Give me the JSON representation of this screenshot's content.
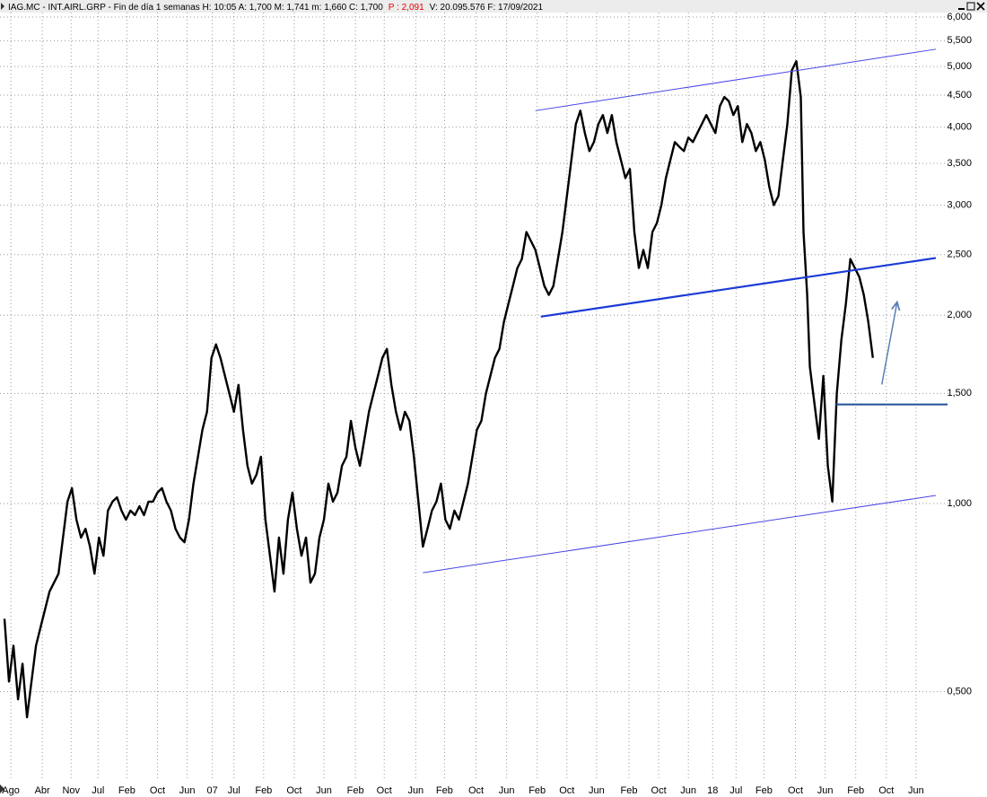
{
  "chart_data": {
    "type": "line",
    "info": [
      {
        "text": "IAG.MC - INT.AIRL.GRP - Fin de día 1 semanas  H: 10:05  A: 1,700  M: 1,741  m: 1,660  C: 1,700",
        "color": "#000000"
      },
      {
        "text": "P : 2,091",
        "color": "#e00000"
      },
      {
        "text": "V: 20.095.576  F: 17/09/2021",
        "color": "#000000"
      }
    ],
    "log_y": true,
    "grid": true,
    "xlim": [
      0,
      1055
    ],
    "ylim": [
      0.36,
      6.1
    ],
    "yticks": [
      {
        "value": 6,
        "label": "6,000"
      },
      {
        "value": 5.5,
        "label": "5,500"
      },
      {
        "value": 5,
        "label": "5,000"
      },
      {
        "value": 4.5,
        "label": "4,500"
      },
      {
        "value": 4,
        "label": "4,000"
      },
      {
        "value": 3.5,
        "label": "3,500"
      },
      {
        "value": 3,
        "label": "3,000"
      },
      {
        "value": 2.5,
        "label": "2,500"
      },
      {
        "value": 2,
        "label": "2,000"
      },
      {
        "value": 1.5,
        "label": "1,500"
      },
      {
        "value": 1,
        "label": "1,000"
      },
      {
        "value": 0.5,
        "label": "0,500"
      }
    ],
    "xticks": [
      {
        "value": 12,
        "label": "Ago"
      },
      {
        "value": 47,
        "label": "Abr"
      },
      {
        "value": 79,
        "label": "Nov"
      },
      {
        "value": 109,
        "label": "Jul"
      },
      {
        "value": 141,
        "label": "Feb"
      },
      {
        "value": 175,
        "label": "Oct"
      },
      {
        "value": 208,
        "label": "Jun"
      },
      {
        "value": 236,
        "label": "07"
      },
      {
        "value": 260,
        "label": "Jul"
      },
      {
        "value": 293,
        "label": "Feb"
      },
      {
        "value": 327,
        "label": "Oct"
      },
      {
        "value": 360,
        "label": "Jun"
      },
      {
        "value": 395,
        "label": "Feb"
      },
      {
        "value": 427,
        "label": "Oct"
      },
      {
        "value": 462,
        "label": "Jun"
      },
      {
        "value": 494,
        "label": "Feb"
      },
      {
        "value": 529,
        "label": "Oct"
      },
      {
        "value": 563,
        "label": "Jun"
      },
      {
        "value": 597,
        "label": "Feb"
      },
      {
        "value": 630,
        "label": "Oct"
      },
      {
        "value": 663,
        "label": "Jun"
      },
      {
        "value": 699,
        "label": "Feb"
      },
      {
        "value": 732,
        "label": "Oct"
      },
      {
        "value": 765,
        "label": "Jun"
      },
      {
        "value": 792,
        "label": "18"
      },
      {
        "value": 818,
        "label": "Jul"
      },
      {
        "value": 849,
        "label": "Feb"
      },
      {
        "value": 884,
        "label": "Oct"
      },
      {
        "value": 917,
        "label": "Jun"
      },
      {
        "value": 951,
        "label": "Feb"
      },
      {
        "value": 985,
        "label": "Oct"
      },
      {
        "value": 1018,
        "label": "Jun"
      }
    ],
    "x": [
      5,
      10,
      15,
      20,
      25,
      30,
      35,
      40,
      45,
      50,
      55,
      60,
      65,
      70,
      75,
      80,
      85,
      90,
      95,
      100,
      105,
      110,
      115,
      120,
      125,
      130,
      135,
      140,
      145,
      150,
      155,
      160,
      165,
      170,
      175,
      180,
      185,
      190,
      195,
      200,
      205,
      210,
      215,
      220,
      225,
      230,
      235,
      240,
      245,
      250,
      255,
      260,
      265,
      270,
      275,
      280,
      285,
      290,
      295,
      300,
      305,
      310,
      315,
      320,
      325,
      330,
      335,
      340,
      345,
      350,
      355,
      360,
      365,
      370,
      375,
      380,
      385,
      390,
      395,
      400,
      405,
      410,
      415,
      420,
      425,
      430,
      435,
      440,
      445,
      450,
      455,
      460,
      465,
      470,
      475,
      480,
      485,
      490,
      495,
      500,
      505,
      510,
      515,
      520,
      525,
      530,
      535,
      540,
      545,
      550,
      555,
      560,
      565,
      570,
      575,
      580,
      585,
      590,
      595,
      600,
      605,
      610,
      615,
      620,
      625,
      630,
      635,
      640,
      645,
      650,
      655,
      660,
      665,
      670,
      675,
      680,
      685,
      690,
      695,
      700,
      705,
      710,
      715,
      720,
      725,
      730,
      735,
      740,
      745,
      750,
      755,
      760,
      765,
      770,
      775,
      780,
      785,
      790,
      795,
      800,
      805,
      810,
      815,
      820,
      825,
      830,
      835,
      840,
      845,
      850,
      855,
      860,
      865,
      870,
      875,
      880,
      885,
      890,
      893,
      897,
      900,
      905,
      910,
      915,
      920,
      925,
      930,
      935,
      940,
      945,
      950,
      955,
      960,
      965,
      970
    ],
    "series": [
      {
        "color": "#000000",
        "values": [
          0.654,
          0.519,
          0.592,
          0.486,
          0.554,
          0.455,
          0.519,
          0.592,
          0.633,
          0.676,
          0.723,
          0.747,
          0.772,
          0.882,
          1.007,
          1.058,
          0.942,
          0.882,
          0.911,
          0.853,
          0.772,
          0.882,
          0.825,
          0.974,
          1.007,
          1.023,
          0.974,
          0.942,
          0.974,
          0.958,
          0.99,
          0.958,
          1.007,
          1.007,
          1.041,
          1.058,
          1.007,
          0.974,
          0.911,
          0.882,
          0.867,
          0.942,
          1.076,
          1.188,
          1.312,
          1.402,
          1.71,
          1.797,
          1.71,
          1.6,
          1.498,
          1.402,
          1.548,
          1.312,
          1.149,
          1.076,
          1.112,
          1.188,
          0.942,
          0.825,
          0.723,
          0.882,
          0.772,
          0.942,
          1.041,
          0.911,
          0.825,
          0.882,
          0.747,
          0.772,
          0.882,
          0.942,
          1.076,
          1.007,
          1.041,
          1.149,
          1.188,
          1.356,
          1.228,
          1.149,
          1.269,
          1.402,
          1.498,
          1.6,
          1.71,
          1.767,
          1.548,
          1.402,
          1.312,
          1.402,
          1.356,
          1.188,
          1.007,
          0.853,
          0.911,
          0.974,
          1.007,
          1.076,
          0.942,
          0.911,
          0.974,
          0.942,
          1.007,
          1.076,
          1.188,
          1.312,
          1.356,
          1.498,
          1.6,
          1.71,
          1.767,
          1.952,
          2.086,
          2.228,
          2.381,
          2.461,
          2.718,
          2.63,
          2.544,
          2.381,
          2.228,
          2.156,
          2.228,
          2.461,
          2.718,
          3.103,
          3.543,
          4.046,
          4.25,
          3.914,
          3.663,
          3.786,
          4.046,
          4.182,
          3.914,
          4.182,
          3.786,
          3.543,
          3.316,
          3.428,
          2.718,
          2.381,
          2.544,
          2.381,
          2.718,
          2.81,
          3.002,
          3.316,
          3.543,
          3.786,
          3.72,
          3.663,
          3.85,
          3.786,
          3.914,
          4.046,
          4.182,
          4.046,
          3.914,
          4.323,
          4.469,
          4.4,
          4.182,
          4.323,
          3.786,
          4.046,
          3.914,
          3.663,
          3.786,
          3.543,
          3.208,
          3.002,
          3.103,
          3.543,
          4.046,
          4.93,
          5.1,
          4.469,
          2.718,
          2.156,
          1.654,
          1.449,
          1.269,
          1.6,
          1.149,
          1.007,
          1.498,
          1.827,
          2.086,
          2.461,
          2.381,
          2.303,
          2.156,
          1.952,
          1.71
        ]
      }
    ],
    "lines": [
      {
        "x": [
          595,
          1040
        ],
        "values": [
          4.25,
          5.33
        ],
        "color": "#4646e6",
        "width": 1
      },
      {
        "x": [
          601,
          1040
        ],
        "values": [
          1.99,
          2.47
        ],
        "color": "#1a3ad6",
        "width": 2.2
      },
      {
        "x": [
          470,
          1040
        ],
        "values": [
          0.775,
          1.03
        ],
        "color": "#4646e6",
        "width": 1
      },
      {
        "x": [
          928,
          1053
        ],
        "values": [
          1.44,
          1.44
        ],
        "color": "#1f4f96",
        "width": 2
      },
      {
        "x": [
          980,
          997
        ],
        "values": [
          1.55,
          2.1
        ],
        "color": "#5a80b4",
        "width": 1.5,
        "arrow": true
      }
    ]
  }
}
